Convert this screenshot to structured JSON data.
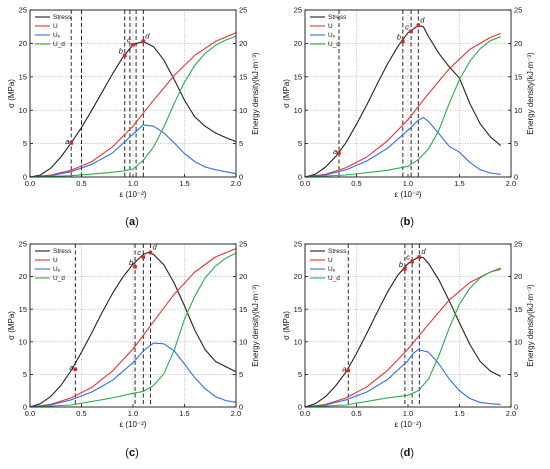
{
  "colors": {
    "stress": "#222222",
    "U": "#e8322d",
    "U_e": "#2f6fe6",
    "U_d": "#2eaa4f",
    "marker": "#d62728",
    "grid": "#9a9a9a"
  },
  "axes_text": {
    "xlabel": "ε (10⁻²)",
    "ylabel_left": "σ (MPa)",
    "ylabel_right": "Energy density(kJ·m⁻³)"
  },
  "chart_data": [
    {
      "type": "line",
      "panel_label": "a",
      "xlim": [
        0.0,
        2.0
      ],
      "ylim_left": [
        0,
        25
      ],
      "ylim_right": [
        0,
        25
      ],
      "xticks": [
        "0.0",
        "0.5",
        "1.0",
        "1.5",
        "2.0"
      ],
      "yticks_left": [
        "0",
        "5",
        "10",
        "15",
        "20",
        "25"
      ],
      "yticks_right": [
        "0",
        "5",
        "10",
        "15",
        "20",
        "25"
      ],
      "legend": {
        "position": "top-left",
        "entries": [
          "Stress",
          "U",
          "Uₑ",
          "U_d"
        ]
      },
      "grid": true,
      "series": [
        {
          "name": "Stress",
          "axis": "left",
          "x": [
            0.0,
            0.1,
            0.2,
            0.3,
            0.4,
            0.5,
            0.6,
            0.7,
            0.8,
            0.9,
            1.0,
            1.1,
            1.2,
            1.3,
            1.4,
            1.5,
            1.6,
            1.7,
            1.8,
            1.9,
            2.0
          ],
          "y": [
            0.0,
            0.3,
            1.3,
            3.0,
            5.1,
            7.4,
            10.0,
            12.7,
            15.4,
            17.9,
            19.8,
            20.3,
            19.5,
            17.5,
            14.6,
            11.5,
            9.0,
            7.6,
            6.6,
            5.9,
            5.3
          ]
        },
        {
          "name": "U",
          "axis": "right",
          "x": [
            0.0,
            0.2,
            0.4,
            0.6,
            0.8,
            1.0,
            1.2,
            1.4,
            1.6,
            1.8,
            2.0
          ],
          "y": [
            0.0,
            0.3,
            1.0,
            2.3,
            4.5,
            7.6,
            11.5,
            15.2,
            18.2,
            20.3,
            21.6
          ]
        },
        {
          "name": "Uₑ",
          "axis": "right",
          "x": [
            0.0,
            0.2,
            0.4,
            0.6,
            0.8,
            1.0,
            1.1,
            1.2,
            1.3,
            1.4,
            1.5,
            1.6,
            1.7,
            1.8,
            1.9,
            2.0
          ],
          "y": [
            0.0,
            0.2,
            0.8,
            1.9,
            3.6,
            6.4,
            7.8,
            7.6,
            6.6,
            5.1,
            3.5,
            2.3,
            1.5,
            1.1,
            0.8,
            0.5
          ]
        },
        {
          "name": "U_d",
          "axis": "right",
          "x": [
            0.0,
            0.4,
            0.8,
            0.9,
            1.0,
            1.1,
            1.2,
            1.3,
            1.4,
            1.5,
            1.6,
            1.7,
            1.8,
            1.9,
            2.0
          ],
          "y": [
            0.0,
            0.2,
            0.7,
            0.9,
            1.2,
            2.5,
            4.5,
            7.5,
            11.0,
            14.2,
            16.7,
            18.5,
            19.7,
            20.5,
            21.1
          ]
        }
      ],
      "points": [
        {
          "label": "a",
          "x": 0.4,
          "y": 5.1
        },
        {
          "label": "b",
          "x": 0.92,
          "y": 18.2
        },
        {
          "label": "c",
          "x": 1.0,
          "y": 19.8
        },
        {
          "label": "d",
          "x": 1.1,
          "y": 20.3
        }
      ],
      "vlines": [
        0.4,
        0.5,
        0.92,
        0.97,
        1.03,
        1.1
      ]
    },
    {
      "type": "line",
      "panel_label": "b",
      "xlim": [
        0.0,
        2.0
      ],
      "ylim_left": [
        0,
        25
      ],
      "ylim_right": [
        0,
        25
      ],
      "xticks": [
        "0.0",
        "0.5",
        "1.0",
        "1.5",
        "2.0"
      ],
      "yticks_left": [
        "0",
        "5",
        "10",
        "15",
        "20",
        "25"
      ],
      "yticks_right": [
        "0",
        "5",
        "10",
        "15",
        "20",
        "25"
      ],
      "legend": {
        "position": "top-left",
        "entries": [
          "Stress",
          "U",
          "Uₑ",
          "U_d"
        ]
      },
      "grid": true,
      "series": [
        {
          "name": "Stress",
          "axis": "left",
          "x": [
            0.0,
            0.1,
            0.2,
            0.3,
            0.4,
            0.5,
            0.6,
            0.7,
            0.8,
            0.9,
            1.0,
            1.1,
            1.15,
            1.2,
            1.3,
            1.4,
            1.5,
            1.6,
            1.7,
            1.8,
            1.9
          ],
          "y": [
            0.0,
            0.4,
            1.5,
            3.1,
            5.2,
            7.9,
            10.8,
            13.9,
            16.9,
            19.5,
            21.6,
            22.7,
            22.5,
            21.0,
            18.5,
            16.5,
            14.8,
            11.0,
            8.0,
            6.0,
            4.7
          ]
        },
        {
          "name": "U",
          "axis": "right",
          "x": [
            0.0,
            0.2,
            0.4,
            0.6,
            0.8,
            1.0,
            1.2,
            1.4,
            1.6,
            1.8,
            1.9
          ],
          "y": [
            0.0,
            0.4,
            1.4,
            3.0,
            5.4,
            8.6,
            12.5,
            16.2,
            19.1,
            20.9,
            21.5
          ]
        },
        {
          "name": "Uₑ",
          "axis": "right",
          "x": [
            0.0,
            0.2,
            0.4,
            0.6,
            0.8,
            1.0,
            1.1,
            1.15,
            1.2,
            1.3,
            1.4,
            1.5,
            1.6,
            1.7,
            1.8,
            1.9
          ],
          "y": [
            0.0,
            0.3,
            1.1,
            2.4,
            4.3,
            7.0,
            8.5,
            8.9,
            8.3,
            6.5,
            4.6,
            3.7,
            2.2,
            1.1,
            0.6,
            0.4
          ]
        },
        {
          "name": "U_d",
          "axis": "right",
          "x": [
            0.0,
            0.4,
            0.8,
            1.0,
            1.1,
            1.2,
            1.3,
            1.4,
            1.5,
            1.6,
            1.7,
            1.8,
            1.9
          ],
          "y": [
            0.0,
            0.3,
            1.0,
            1.6,
            2.6,
            4.2,
            7.0,
            11.0,
            14.6,
            17.3,
            19.2,
            20.4,
            21.0
          ]
        }
      ],
      "points": [
        {
          "label": "a",
          "x": 0.33,
          "y": 3.6
        },
        {
          "label": "b",
          "x": 0.95,
          "y": 20.3
        },
        {
          "label": "c",
          "x": 1.03,
          "y": 21.8
        },
        {
          "label": "d",
          "x": 1.1,
          "y": 22.7
        }
      ],
      "vlines": [
        0.33,
        0.95,
        1.03,
        1.1
      ]
    },
    {
      "type": "line",
      "panel_label": "c",
      "xlim": [
        0.0,
        2.0
      ],
      "ylim_left": [
        0,
        25
      ],
      "ylim_right": [
        0,
        25
      ],
      "xticks": [
        "0.0",
        "0.5",
        "1.0",
        "1.5",
        "2.0"
      ],
      "yticks_left": [
        "0",
        "5",
        "10",
        "15",
        "20",
        "25"
      ],
      "yticks_right": [
        "0",
        "5",
        "10",
        "15",
        "20",
        "25"
      ],
      "legend": {
        "position": "top-left",
        "entries": [
          "Stress",
          "U",
          "Uₑ",
          "U_d"
        ]
      },
      "grid": true,
      "series": [
        {
          "name": "Stress",
          "axis": "left",
          "x": [
            0.0,
            0.1,
            0.2,
            0.3,
            0.4,
            0.5,
            0.6,
            0.7,
            0.8,
            0.9,
            1.0,
            1.1,
            1.15,
            1.2,
            1.3,
            1.4,
            1.5,
            1.6,
            1.7,
            1.8,
            1.9,
            2.0
          ],
          "y": [
            0.0,
            0.5,
            1.6,
            3.3,
            5.6,
            8.4,
            11.4,
            14.5,
            17.4,
            19.9,
            21.9,
            23.4,
            23.7,
            23.4,
            21.8,
            19.0,
            15.5,
            11.8,
            8.8,
            7.0,
            6.2,
            5.4
          ]
        },
        {
          "name": "U",
          "axis": "right",
          "x": [
            0.0,
            0.2,
            0.4,
            0.6,
            0.8,
            1.0,
            1.2,
            1.4,
            1.6,
            1.8,
            2.0
          ],
          "y": [
            0.0,
            0.4,
            1.4,
            3.0,
            5.5,
            8.9,
            13.1,
            17.3,
            20.7,
            23.0,
            24.3
          ]
        },
        {
          "name": "Uₑ",
          "axis": "right",
          "x": [
            0.0,
            0.2,
            0.4,
            0.6,
            0.8,
            1.0,
            1.1,
            1.2,
            1.3,
            1.4,
            1.5,
            1.6,
            1.7,
            1.8,
            1.9,
            2.0
          ],
          "y": [
            0.0,
            0.3,
            1.1,
            2.3,
            4.1,
            6.8,
            8.6,
            9.8,
            9.7,
            8.6,
            6.6,
            4.5,
            2.8,
            1.6,
            1.0,
            0.7
          ]
        },
        {
          "name": "U_d",
          "axis": "right",
          "x": [
            0.0,
            0.4,
            0.8,
            1.0,
            1.1,
            1.2,
            1.3,
            1.4,
            1.5,
            1.6,
            1.7,
            1.8,
            1.9,
            2.0
          ],
          "y": [
            0.0,
            0.3,
            1.4,
            2.1,
            2.4,
            3.3,
            5.1,
            8.7,
            13.5,
            17.0,
            19.8,
            21.6,
            22.8,
            23.6
          ]
        }
      ],
      "points": [
        {
          "label": "a",
          "x": 0.44,
          "y": 5.8
        },
        {
          "label": "b",
          "x": 1.02,
          "y": 21.5
        },
        {
          "label": "c",
          "x": 1.1,
          "y": 23.0
        },
        {
          "label": "d",
          "x": 1.17,
          "y": 23.7
        }
      ],
      "vlines": [
        0.44,
        1.02,
        1.1,
        1.17
      ]
    },
    {
      "type": "line",
      "panel_label": "d",
      "xlim": [
        0.0,
        2.0
      ],
      "ylim_left": [
        0,
        25
      ],
      "ylim_right": [
        0,
        25
      ],
      "xticks": [
        "0.0",
        "0.5",
        "1.0",
        "1.5",
        "2.0"
      ],
      "yticks_left": [
        "0",
        "5",
        "10",
        "15",
        "20",
        "25"
      ],
      "yticks_right": [
        "0",
        "5",
        "10",
        "15",
        "20",
        "25"
      ],
      "legend": {
        "position": "top-left",
        "entries": [
          "Stress",
          "U",
          "Uₑ",
          "U_d"
        ]
      },
      "grid": true,
      "series": [
        {
          "name": "Stress",
          "axis": "left",
          "x": [
            0.0,
            0.1,
            0.2,
            0.3,
            0.4,
            0.5,
            0.6,
            0.7,
            0.8,
            0.9,
            1.0,
            1.1,
            1.15,
            1.2,
            1.3,
            1.4,
            1.5,
            1.6,
            1.7,
            1.8,
            1.9
          ],
          "y": [
            0.0,
            0.5,
            1.6,
            3.3,
            5.4,
            8.2,
            11.3,
            14.5,
            17.6,
            20.2,
            22.0,
            23.0,
            22.9,
            22.0,
            19.5,
            16.3,
            12.9,
            9.6,
            7.0,
            5.5,
            4.7
          ]
        },
        {
          "name": "U",
          "axis": "right",
          "x": [
            0.0,
            0.2,
            0.4,
            0.6,
            0.8,
            1.0,
            1.2,
            1.4,
            1.6,
            1.8,
            1.9
          ],
          "y": [
            0.0,
            0.4,
            1.4,
            3.1,
            5.6,
            8.9,
            12.7,
            16.4,
            19.1,
            20.7,
            21.3
          ]
        },
        {
          "name": "Uₑ",
          "axis": "right",
          "x": [
            0.0,
            0.2,
            0.4,
            0.6,
            0.8,
            1.0,
            1.05,
            1.1,
            1.2,
            1.3,
            1.4,
            1.5,
            1.6,
            1.7,
            1.8,
            1.9
          ],
          "y": [
            0.0,
            0.3,
            1.1,
            2.3,
            4.2,
            7.1,
            8.2,
            8.8,
            8.4,
            6.6,
            4.3,
            2.5,
            1.3,
            0.7,
            0.5,
            0.4
          ]
        },
        {
          "name": "U_d",
          "axis": "right",
          "x": [
            0.0,
            0.4,
            0.8,
            1.0,
            1.1,
            1.2,
            1.3,
            1.4,
            1.5,
            1.6,
            1.7,
            1.8,
            1.9
          ],
          "y": [
            0.0,
            0.3,
            1.4,
            1.8,
            2.5,
            4.3,
            7.9,
            12.1,
            15.8,
            18.2,
            19.8,
            20.7,
            21.1
          ]
        }
      ],
      "points": [
        {
          "label": "a",
          "x": 0.42,
          "y": 5.6
        },
        {
          "label": "b",
          "x": 0.97,
          "y": 21.2
        },
        {
          "label": "c",
          "x": 1.04,
          "y": 22.3
        },
        {
          "label": "d",
          "x": 1.11,
          "y": 23.0
        }
      ],
      "vlines": [
        0.42,
        0.97,
        1.04,
        1.11
      ]
    }
  ]
}
